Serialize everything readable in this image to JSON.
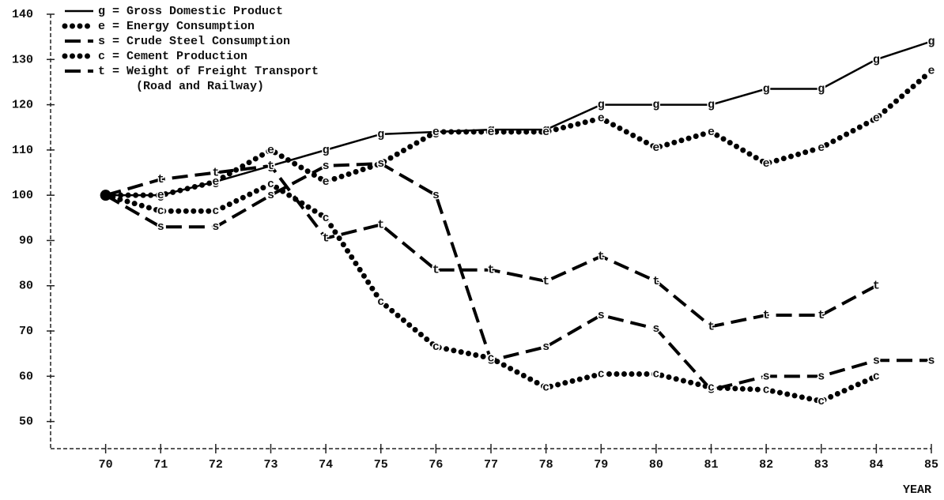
{
  "chart_data": {
    "type": "line",
    "x": [
      70,
      71,
      72,
      73,
      74,
      75,
      76,
      77,
      78,
      79,
      80,
      81,
      82,
      83,
      84,
      85
    ],
    "xlim": [
      69,
      85
    ],
    "xticks": [
      70,
      71,
      72,
      73,
      74,
      75,
      76,
      77,
      78,
      79,
      80,
      81,
      82,
      83,
      84,
      85
    ],
    "ylim": [
      44,
      140
    ],
    "yticks": [
      50,
      60,
      70,
      80,
      90,
      100,
      110,
      120,
      130,
      140
    ],
    "x_label": "YEAR",
    "series": [
      {
        "name": "g = Gross Domestic Product",
        "marker": "g",
        "style": "solid",
        "color": "#000000",
        "values": [
          100,
          100,
          103,
          106.5,
          110,
          113.5,
          114,
          114.5,
          114.5,
          120,
          120,
          120,
          123.5,
          123.5,
          130,
          134
        ]
      },
      {
        "name": "e = Energy Consumption",
        "marker": "e",
        "style": "dots",
        "color": "#000000",
        "values": [
          100,
          100,
          103,
          110,
          103,
          107,
          114,
          114,
          114,
          117,
          110.5,
          114,
          107,
          110.5,
          117,
          127.5
        ]
      },
      {
        "name": "s = Crude Steel Consumption",
        "marker": "s",
        "style": "arrows",
        "color": "#000000",
        "values": [
          100,
          93,
          93,
          100,
          106.5,
          107,
          100,
          63.5,
          66.5,
          73.5,
          70.5,
          57,
          60,
          60,
          63.5,
          63.5
        ]
      },
      {
        "name": "c = Cement Production",
        "marker": "c",
        "style": "dots",
        "color": "#000000",
        "values": [
          100,
          96.5,
          96.5,
          102.5,
          95,
          76.5,
          66.5,
          64,
          57.5,
          60.5,
          60.5,
          57.5,
          57,
          54.5,
          60,
          null
        ]
      },
      {
        "name": "t = Weight of Freight Transport",
        "name_note": "(Road and Railway)",
        "marker": "t",
        "style": "arrows",
        "color": "#000000",
        "values": [
          100,
          103.5,
          105,
          106.5,
          90.5,
          93.5,
          83.5,
          83.5,
          81,
          86.5,
          81,
          71,
          73.5,
          73.5,
          80,
          null
        ]
      }
    ]
  }
}
